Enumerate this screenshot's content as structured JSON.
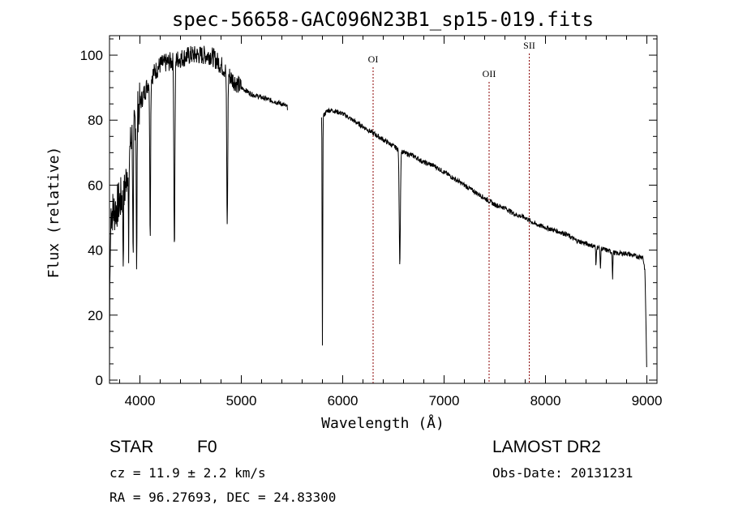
{
  "chart_data": {
    "type": "line",
    "title": "spec-56658-GAC096N23B1_sp15-019.fits",
    "xlabel": "Wavelength (Å)",
    "ylabel": "Flux (relative)",
    "xlim": [
      3700,
      9100
    ],
    "ylim": [
      -1,
      106
    ],
    "x_ticks": [
      4000,
      5000,
      6000,
      7000,
      8000,
      9000
    ],
    "y_ticks": [
      0,
      20,
      40,
      60,
      80,
      100
    ],
    "grid": false,
    "line_color": "#000000",
    "marker_color": "#8b0000",
    "gap": [
      5460,
      5790
    ],
    "continuum": [
      [
        3700,
        0
      ],
      [
        3703,
        30
      ],
      [
        3715,
        52
      ],
      [
        3750,
        52
      ],
      [
        3800,
        55
      ],
      [
        3850,
        58
      ],
      [
        3900,
        72
      ],
      [
        3950,
        80
      ],
      [
        4000,
        85
      ],
      [
        4100,
        93
      ],
      [
        4200,
        97
      ],
      [
        4300,
        98
      ],
      [
        4400,
        99
      ],
      [
        4500,
        100
      ],
      [
        4600,
        100
      ],
      [
        4700,
        100
      ],
      [
        4800,
        97
      ],
      [
        4900,
        93
      ],
      [
        5000,
        90
      ],
      [
        5100,
        88
      ],
      [
        5200,
        87
      ],
      [
        5300,
        86
      ],
      [
        5400,
        85
      ],
      [
        5455,
        84
      ],
      [
        5800,
        81
      ],
      [
        5850,
        83
      ],
      [
        5900,
        83
      ],
      [
        6000,
        82
      ],
      [
        6100,
        80
      ],
      [
        6200,
        78
      ],
      [
        6300,
        76
      ],
      [
        6400,
        74
      ],
      [
        6500,
        72
      ],
      [
        6600,
        70
      ],
      [
        6700,
        69
      ],
      [
        6800,
        67
      ],
      [
        6900,
        66
      ],
      [
        7000,
        64
      ],
      [
        7100,
        62
      ],
      [
        7200,
        60
      ],
      [
        7300,
        58
      ],
      [
        7400,
        56
      ],
      [
        7500,
        54
      ],
      [
        7600,
        53
      ],
      [
        7700,
        51
      ],
      [
        7800,
        50
      ],
      [
        7900,
        48
      ],
      [
        8000,
        47
      ],
      [
        8100,
        46
      ],
      [
        8200,
        45
      ],
      [
        8300,
        43
      ],
      [
        8400,
        42
      ],
      [
        8500,
        41
      ],
      [
        8600,
        40
      ],
      [
        8700,
        39
      ],
      [
        8800,
        39
      ],
      [
        8900,
        38
      ],
      [
        8960,
        38
      ],
      [
        8980,
        34
      ],
      [
        8990,
        20
      ],
      [
        9000,
        0
      ]
    ],
    "absorption_lines": [
      {
        "x": 3835,
        "depth": 20,
        "width": 4
      },
      {
        "x": 3889,
        "depth": 35,
        "width": 4
      },
      {
        "x": 3933,
        "depth": 45,
        "width": 5
      },
      {
        "x": 3968,
        "depth": 48,
        "width": 5
      },
      {
        "x": 4101,
        "depth": 48,
        "width": 6
      },
      {
        "x": 4340,
        "depth": 58,
        "width": 7
      },
      {
        "x": 4861,
        "depth": 48,
        "width": 7
      },
      {
        "x": 5800,
        "depth": 70,
        "width": 4
      },
      {
        "x": 6563,
        "depth": 35,
        "width": 8
      },
      {
        "x": 8498,
        "depth": 6,
        "width": 4
      },
      {
        "x": 8542,
        "depth": 7,
        "width": 4
      },
      {
        "x": 8662,
        "depth": 8,
        "width": 4
      }
    ],
    "line_markers": [
      {
        "name": "OI",
        "x": 6300
      },
      {
        "name": "OII",
        "x": 7444
      },
      {
        "name": "SII",
        "x": 7840
      }
    ]
  },
  "info": {
    "object_class": "STAR",
    "subclass": "F0",
    "survey": "LAMOST DR2",
    "redshift_text": "cz = 11.9 ± 2.2 km/s",
    "obs_date": "Obs-Date: 20131231",
    "coords": "RA =  96.27693, DEC =  24.83300"
  }
}
